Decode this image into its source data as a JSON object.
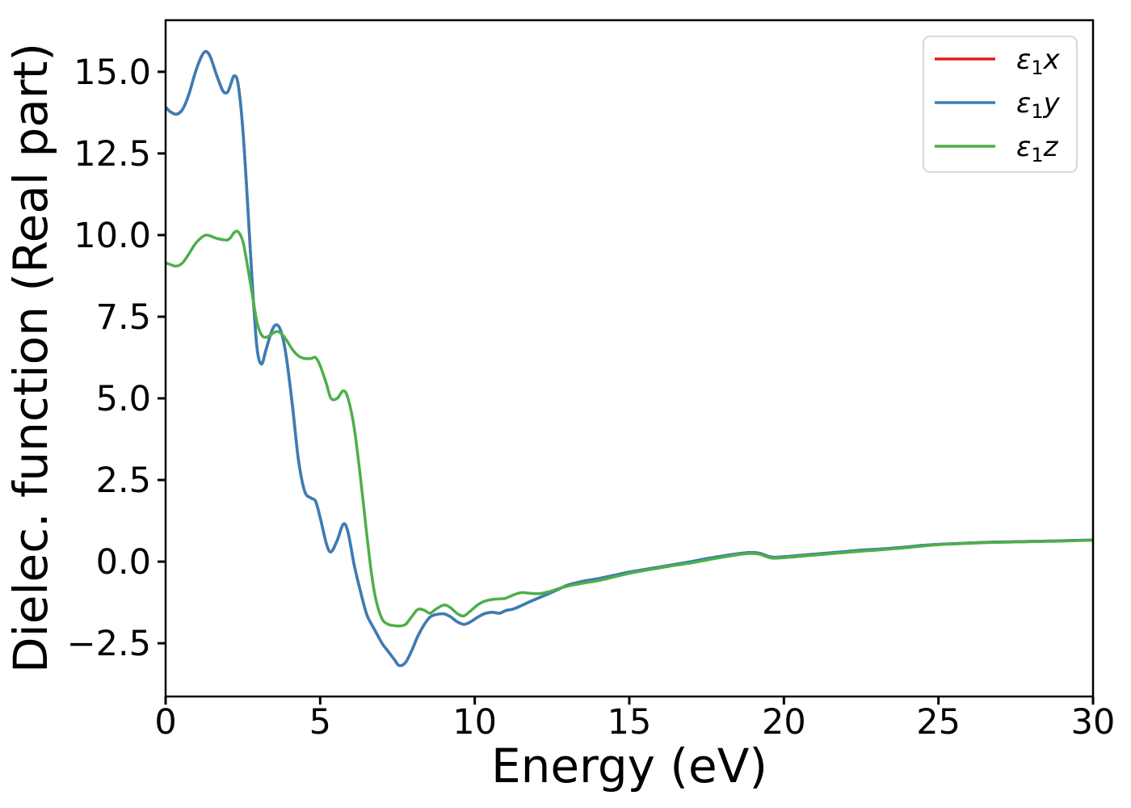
{
  "figure_title": "",
  "chart_data": {
    "type": "line",
    "title": "",
    "xlabel": "Energy (eV)",
    "ylabel": "Dielec. function (Real part)",
    "xlim": [
      0,
      30
    ],
    "ylim": [
      -4.13,
      16.58
    ],
    "xticks": [
      0,
      5,
      10,
      15,
      20,
      25,
      30
    ],
    "yticks": [
      -2.5,
      0.0,
      2.5,
      5.0,
      7.5,
      10.0,
      12.5,
      15.0
    ],
    "grid": false,
    "legend_position": "upper right",
    "colors": {
      "eps1x": "#e41a1c",
      "eps1y": "#377eb8",
      "eps1z": "#4daf4a",
      "legend_border": "#cccccc",
      "axis": "#000000"
    },
    "x": [
      0,
      0.15,
      0.35,
      0.55,
      0.75,
      0.95,
      1.15,
      1.3,
      1.45,
      1.65,
      1.85,
      2.0,
      2.1,
      2.22,
      2.35,
      2.5,
      2.65,
      2.8,
      2.95,
      3.1,
      3.25,
      3.45,
      3.6,
      3.75,
      3.9,
      4.1,
      4.3,
      4.5,
      4.7,
      4.85,
      5.0,
      5.2,
      5.35,
      5.55,
      5.75,
      5.9,
      6.1,
      6.3,
      6.5,
      6.65,
      6.8,
      7.0,
      7.2,
      7.4,
      7.55,
      7.75,
      7.95,
      8.15,
      8.35,
      8.55,
      8.75,
      9.0,
      9.2,
      9.45,
      9.65,
      9.85,
      10.1,
      10.3,
      10.55,
      10.8,
      11.0,
      11.25,
      11.5,
      11.8,
      12.1,
      12.4,
      12.7,
      13.0,
      13.5,
      14.0,
      14.5,
      15.0,
      15.5,
      16.0,
      16.5,
      17.0,
      17.5,
      18.0,
      18.5,
      18.9,
      19.2,
      19.6,
      20.0,
      20.5,
      21.0,
      21.5,
      22.0,
      22.5,
      23.0,
      23.5,
      24.0,
      24.5,
      25.0,
      25.5,
      26.0,
      26.5,
      27.0,
      27.5,
      28.0,
      28.5,
      29.0,
      29.5,
      30.0
    ],
    "series": [
      {
        "id": "eps1x",
        "name": "ε₁x",
        "label_parts": {
          "symbol": "ε",
          "sub": "1",
          "axis": "x"
        },
        "color": "#e41a1c",
        "values": [
          13.92,
          13.78,
          13.7,
          13.85,
          14.3,
          14.95,
          15.45,
          15.62,
          15.45,
          14.9,
          14.42,
          14.37,
          14.6,
          14.88,
          14.6,
          13.2,
          11.0,
          8.6,
          6.6,
          6.05,
          6.5,
          7.1,
          7.25,
          7.0,
          6.3,
          4.8,
          3.1,
          2.15,
          1.95,
          1.85,
          1.35,
          0.55,
          0.3,
          0.65,
          1.15,
          0.9,
          -0.1,
          -0.9,
          -1.6,
          -1.9,
          -2.15,
          -2.5,
          -2.75,
          -3.0,
          -3.18,
          -3.1,
          -2.75,
          -2.3,
          -1.95,
          -1.7,
          -1.62,
          -1.6,
          -1.68,
          -1.85,
          -1.92,
          -1.85,
          -1.7,
          -1.6,
          -1.55,
          -1.58,
          -1.5,
          -1.45,
          -1.35,
          -1.22,
          -1.1,
          -0.98,
          -0.85,
          -0.72,
          -0.6,
          -0.52,
          -0.42,
          -0.32,
          -0.24,
          -0.16,
          -0.08,
          0.0,
          0.09,
          0.17,
          0.24,
          0.28,
          0.26,
          0.14,
          0.15,
          0.19,
          0.23,
          0.27,
          0.31,
          0.35,
          0.38,
          0.41,
          0.45,
          0.5,
          0.53,
          0.55,
          0.57,
          0.59,
          0.6,
          0.61,
          0.62,
          0.63,
          0.64,
          0.65,
          0.66
        ]
      },
      {
        "id": "eps1y",
        "name": "ε₁y",
        "label_parts": {
          "symbol": "ε",
          "sub": "1",
          "axis": "y"
        },
        "color": "#377eb8",
        "values": [
          13.92,
          13.78,
          13.7,
          13.85,
          14.3,
          14.95,
          15.45,
          15.62,
          15.45,
          14.9,
          14.42,
          14.37,
          14.6,
          14.88,
          14.6,
          13.2,
          11.0,
          8.6,
          6.6,
          6.05,
          6.5,
          7.1,
          7.25,
          7.0,
          6.3,
          4.8,
          3.1,
          2.15,
          1.95,
          1.85,
          1.35,
          0.55,
          0.3,
          0.65,
          1.15,
          0.9,
          -0.1,
          -0.9,
          -1.6,
          -1.9,
          -2.15,
          -2.5,
          -2.75,
          -3.0,
          -3.18,
          -3.1,
          -2.75,
          -2.3,
          -1.95,
          -1.7,
          -1.62,
          -1.6,
          -1.68,
          -1.85,
          -1.92,
          -1.85,
          -1.7,
          -1.6,
          -1.55,
          -1.58,
          -1.5,
          -1.45,
          -1.35,
          -1.22,
          -1.1,
          -0.98,
          -0.85,
          -0.72,
          -0.6,
          -0.52,
          -0.42,
          -0.32,
          -0.24,
          -0.16,
          -0.08,
          0.0,
          0.09,
          0.17,
          0.24,
          0.28,
          0.26,
          0.14,
          0.15,
          0.19,
          0.23,
          0.27,
          0.31,
          0.35,
          0.38,
          0.41,
          0.45,
          0.5,
          0.53,
          0.55,
          0.57,
          0.59,
          0.6,
          0.61,
          0.62,
          0.63,
          0.64,
          0.65,
          0.66
        ]
      },
      {
        "id": "eps1z",
        "name": "ε₁z",
        "label_parts": {
          "symbol": "ε",
          "sub": "1",
          "axis": "z"
        },
        "color": "#4daf4a",
        "values": [
          9.15,
          9.1,
          9.05,
          9.15,
          9.42,
          9.72,
          9.92,
          10.0,
          9.97,
          9.9,
          9.86,
          9.85,
          9.92,
          10.08,
          10.1,
          9.8,
          9.05,
          8.2,
          7.35,
          6.95,
          6.87,
          6.98,
          7.05,
          6.98,
          6.8,
          6.5,
          6.3,
          6.22,
          6.22,
          6.25,
          6.0,
          5.45,
          5.0,
          5.0,
          5.23,
          5.0,
          4.1,
          2.6,
          0.9,
          -0.3,
          -1.15,
          -1.75,
          -1.92,
          -1.96,
          -1.97,
          -1.93,
          -1.7,
          -1.47,
          -1.48,
          -1.58,
          -1.45,
          -1.33,
          -1.4,
          -1.6,
          -1.66,
          -1.52,
          -1.32,
          -1.22,
          -1.16,
          -1.14,
          -1.12,
          -1.02,
          -0.95,
          -0.97,
          -0.98,
          -0.92,
          -0.83,
          -0.75,
          -0.66,
          -0.58,
          -0.47,
          -0.36,
          -0.27,
          -0.19,
          -0.11,
          -0.04,
          0.05,
          0.13,
          0.21,
          0.25,
          0.23,
          0.11,
          0.12,
          0.16,
          0.2,
          0.24,
          0.28,
          0.32,
          0.35,
          0.39,
          0.43,
          0.48,
          0.52,
          0.54,
          0.56,
          0.58,
          0.59,
          0.6,
          0.61,
          0.62,
          0.63,
          0.645,
          0.655
        ]
      }
    ]
  }
}
